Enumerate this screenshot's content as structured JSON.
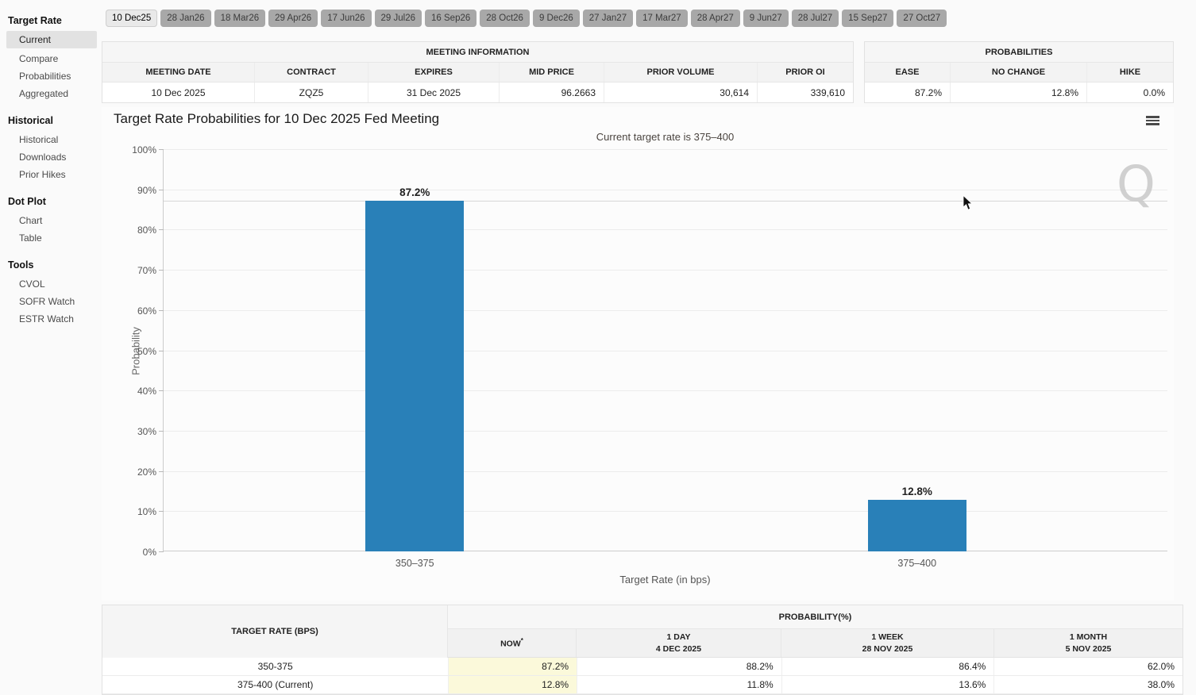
{
  "sidebar": {
    "sections": [
      {
        "title": "Target Rate",
        "items": [
          {
            "label": "Current",
            "selected": true
          },
          {
            "label": "Compare"
          },
          {
            "label": "Probabilities"
          },
          {
            "label": "Aggregated"
          }
        ]
      },
      {
        "title": "Historical",
        "items": [
          {
            "label": "Historical"
          },
          {
            "label": "Downloads"
          },
          {
            "label": "Prior Hikes"
          }
        ]
      },
      {
        "title": "Dot Plot",
        "items": [
          {
            "label": "Chart"
          },
          {
            "label": "Table"
          }
        ]
      },
      {
        "title": "Tools",
        "items": [
          {
            "label": "CVOL"
          },
          {
            "label": "SOFR Watch"
          },
          {
            "label": "ESTR Watch"
          }
        ]
      }
    ]
  },
  "tabs": [
    "10 Dec25",
    "28 Jan26",
    "18 Mar26",
    "29 Apr26",
    "17 Jun26",
    "29 Jul26",
    "16 Sep26",
    "28 Oct26",
    "9 Dec26",
    "27 Jan27",
    "17 Mar27",
    "28 Apr27",
    "9 Jun27",
    "28 Jul27",
    "15 Sep27",
    "27 Oct27"
  ],
  "active_tab": "10 Dec25",
  "meeting_information": {
    "title": "MEETING INFORMATION",
    "columns": [
      "MEETING DATE",
      "CONTRACT",
      "EXPIRES",
      "MID PRICE",
      "PRIOR VOLUME",
      "PRIOR OI"
    ],
    "row": [
      "10 Dec 2025",
      "ZQZ5",
      "31 Dec 2025",
      "96.2663",
      "30,614",
      "339,610"
    ]
  },
  "probabilities_summary": {
    "title": "PROBABILITIES",
    "columns": [
      "EASE",
      "NO CHANGE",
      "HIKE"
    ],
    "row": [
      "87.2%",
      "12.8%",
      "0.0%"
    ]
  },
  "chart_data": {
    "type": "bar",
    "title": "Target Rate Probabilities for 10 Dec 2025 Fed Meeting",
    "subtitle": "Current target rate is 375–400",
    "categories": [
      "350–375",
      "375–400"
    ],
    "values": [
      87.2,
      12.8
    ],
    "bar_labels": [
      "87.2%",
      "12.8%"
    ],
    "xlabel": "Target Rate (in bps)",
    "ylabel": "Probability",
    "ylim": [
      0,
      100
    ],
    "ytick_step": 10,
    "grid": true,
    "bar_color": "#2980b8",
    "reference_line_y": 87.2,
    "watermark": "Q"
  },
  "probability_table": {
    "header_left": "TARGET RATE (BPS)",
    "header_right": "PROBABILITY(%)",
    "sub_columns": [
      {
        "line1": "NOW",
        "sup": "*",
        "line2": ""
      },
      {
        "line1": "1 DAY",
        "line2": "4 DEC 2025"
      },
      {
        "line1": "1 WEEK",
        "line2": "28 NOV 2025"
      },
      {
        "line1": "1 MONTH",
        "line2": "5 NOV 2025"
      }
    ],
    "rows": [
      [
        "350-375",
        "87.2%",
        "88.2%",
        "86.4%",
        "62.0%"
      ],
      [
        "375-400 (Current)",
        "12.8%",
        "11.8%",
        "13.6%",
        "38.0%"
      ]
    ]
  },
  "colors": {
    "bar": "#2980b8",
    "now_highlight": "#fbf9da",
    "tab_inactive": "#a8a8a8",
    "tab_active": "#e9e9e9",
    "sidebar_selected": "#e2e2e2"
  }
}
